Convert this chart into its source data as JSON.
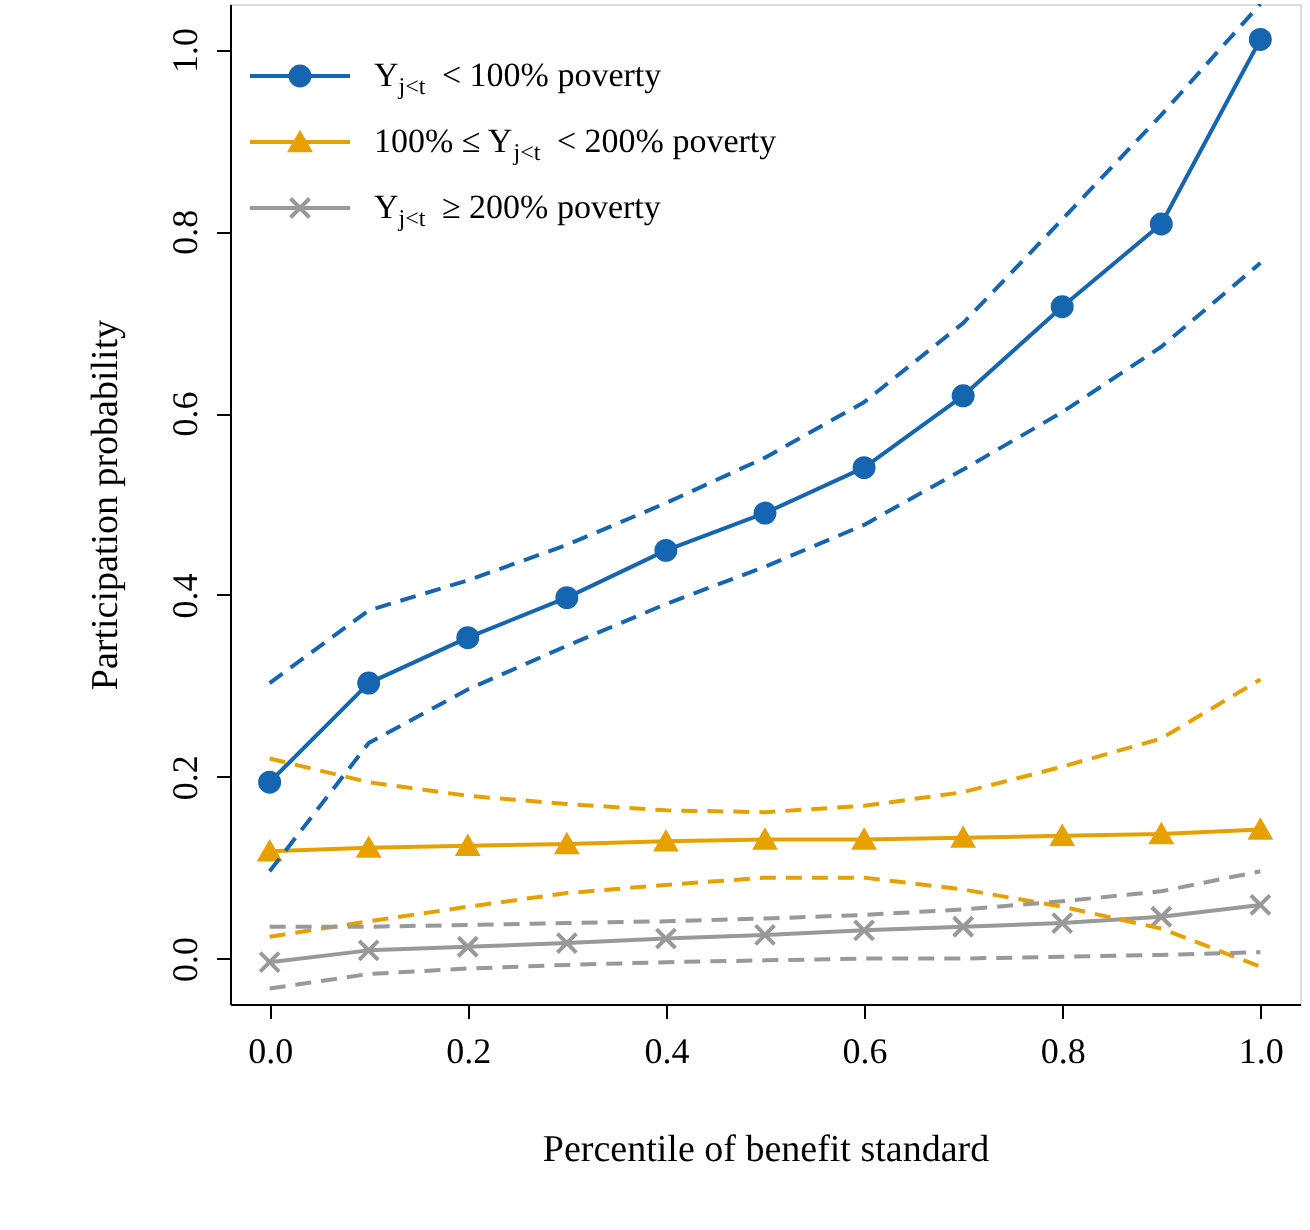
{
  "chart_data": {
    "type": "line",
    "xlabel": "Percentile of benefit standard",
    "ylabel": "Participation probability",
    "x": [
      0.0,
      0.1,
      0.2,
      0.3,
      0.4,
      0.5,
      0.6,
      0.7,
      0.8,
      0.9,
      1.0
    ],
    "xlim": [
      -0.04,
      1.04
    ],
    "ylim": [
      -0.05,
      1.05
    ],
    "xticks": [
      {
        "value": 0,
        "label": "0.0"
      },
      {
        "value": 0.2,
        "label": "0.2"
      },
      {
        "value": 0.4,
        "label": "0.4"
      },
      {
        "value": 0.6,
        "label": "0.6"
      },
      {
        "value": 0.8,
        "label": "0.8"
      },
      {
        "value": 1,
        "label": "1.0"
      }
    ],
    "yticks": [
      {
        "value": 0,
        "label": "0.0"
      },
      {
        "value": 0.2,
        "label": "0.2"
      },
      {
        "value": 0.4,
        "label": "0.4"
      },
      {
        "value": 0.6,
        "label": "0.6"
      },
      {
        "value": 0.8,
        "label": "0.8"
      },
      {
        "value": 1,
        "label": "1.0"
      }
    ],
    "grid": false,
    "legend": "top left",
    "line_style": "solid",
    "series": [
      {
        "name": "Y$_{j<t}$ < 100% poverty",
        "color": "#1565b0",
        "marker": "circle",
        "values": [
          0.194,
          0.303,
          0.353,
          0.397,
          0.449,
          0.49,
          0.54,
          0.619,
          0.717,
          0.808,
          1.011
        ]
      },
      {
        "name": "100% ≤ Y$_{j<t}$ < 200% poverty",
        "color": "#e6a100",
        "marker": "triangle",
        "values": [
          0.118,
          0.122,
          0.124,
          0.126,
          0.129,
          0.131,
          0.131,
          0.133,
          0.135,
          0.137,
          0.142
        ]
      },
      {
        "name": "Y$_{j<t}$ ≥ 200% poverty",
        "color": "#999999",
        "marker": "cross",
        "values": [
          -0.004,
          0.009,
          0.013,
          0.017,
          0.022,
          0.026,
          0.031,
          0.035,
          0.039,
          0.046,
          0.059
        ]
      },
      {
        "color": "#1565b0",
        "line_style": "dashed",
        "marker": "none",
        "values": [
          0.096,
          0.237,
          0.296,
          0.344,
          0.39,
          0.431,
          0.477,
          0.538,
          0.601,
          0.673,
          0.765
        ]
      },
      {
        "color": "#1565b0",
        "line_style": "dashed",
        "marker": "none",
        "values": [
          0.303,
          0.383,
          0.416,
          0.455,
          0.501,
          0.551,
          0.612,
          0.699,
          0.813,
          0.928,
          1.05
        ]
      },
      {
        "color": "#e6a100",
        "line_style": "dashed",
        "marker": "none",
        "values": [
          0.024,
          0.041,
          0.057,
          0.072,
          0.081,
          0.089,
          0.089,
          0.076,
          0.057,
          0.033,
          -0.009
        ]
      },
      {
        "color": "#e6a100",
        "line_style": "dashed",
        "marker": "none",
        "values": [
          0.22,
          0.194,
          0.179,
          0.17,
          0.163,
          0.161,
          0.168,
          0.183,
          0.211,
          0.242,
          0.307
        ]
      },
      {
        "color": "#999999",
        "line_style": "dashed",
        "marker": "none",
        "values": [
          -0.033,
          -0.017,
          -0.011,
          -0.007,
          -0.004,
          -0.002,
          0.0,
          0.0,
          0.002,
          0.004,
          0.007
        ]
      },
      {
        "color": "#999999",
        "line_style": "dashed",
        "marker": "none",
        "values": [
          0.035,
          0.035,
          0.037,
          0.039,
          0.041,
          0.044,
          0.048,
          0.054,
          0.063,
          0.074,
          0.096
        ]
      }
    ]
  }
}
